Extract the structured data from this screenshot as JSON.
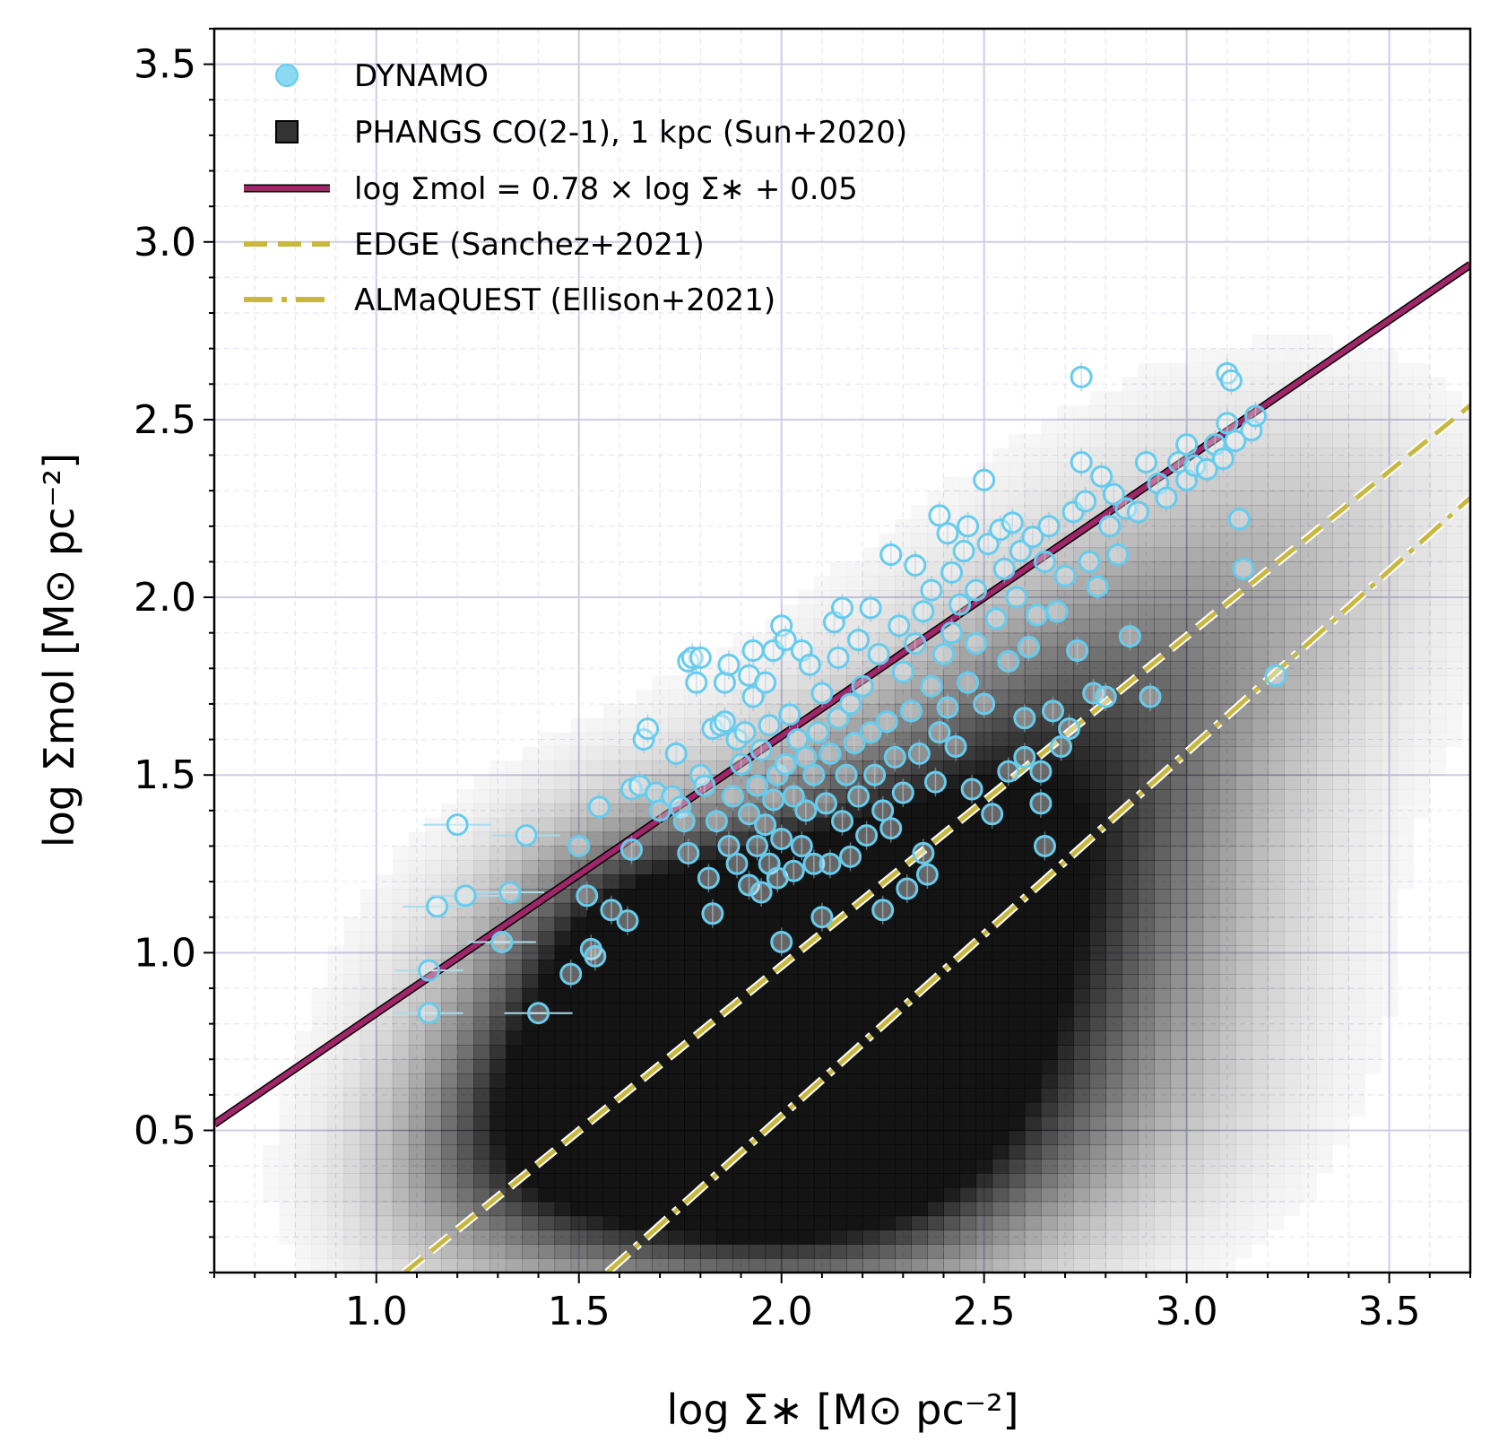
{
  "chart_data": {
    "type": "scatter",
    "title": "",
    "xlabel": "log Σ∗ [M⊙ pc⁻²]",
    "ylabel": "log Σmol [M⊙ pc⁻²]",
    "xlim": [
      0.6,
      3.7
    ],
    "ylim": [
      0.1,
      3.6
    ],
    "x_ticks": [
      "1.0",
      "1.5",
      "2.0",
      "2.5",
      "3.0",
      "3.5"
    ],
    "y_ticks": [
      "0.5",
      "1.0",
      "1.5",
      "2.0",
      "2.5",
      "3.0",
      "3.5"
    ],
    "grid": true,
    "legend_position": "top-left",
    "legend": [
      {
        "label": "DYNAMO",
        "marker": "circle",
        "color": "#66ccee"
      },
      {
        "label": "PHANGS CO(2-1), 1 kpc (Sun+2020)",
        "marker": "square",
        "color": "#333333"
      },
      {
        "label": "log Σmol = 0.78 × log Σ∗ + 0.05",
        "marker": "solid-line",
        "color": "#a0266a"
      },
      {
        "label": "EDGE (Sanchez+2021)",
        "marker": "dashed-line",
        "color": "#c9b840"
      },
      {
        "label": "ALMaQUEST (Ellison+2021)",
        "marker": "dashdot-line",
        "color": "#c9b840"
      }
    ],
    "lines": [
      {
        "name": "log Σmol = 0.78 × log Σ∗ + 0.05",
        "style": "solid",
        "color": "#a0266a",
        "slope": 0.78,
        "intercept": 0.05
      },
      {
        "name": "EDGE (Sanchez+2021)",
        "style": "dashed",
        "color": "#c9b840",
        "points": [
          [
            1.07,
            0.1
          ],
          [
            3.7,
            2.54
          ]
        ]
      },
      {
        "name": "ALMaQUEST (Ellison+2021)",
        "style": "dashdot",
        "color": "#c9b840",
        "points": [
          [
            1.57,
            0.1
          ],
          [
            3.7,
            2.28
          ]
        ]
      }
    ],
    "phangs_density_blobs": [
      [
        1.85,
        0.85,
        0.35,
        0.28,
        0.85
      ],
      [
        2.0,
        0.6,
        0.4,
        0.3,
        0.7
      ],
      [
        1.7,
        0.55,
        0.3,
        0.25,
        0.6
      ],
      [
        2.15,
        1.0,
        0.35,
        0.3,
        0.6
      ],
      [
        2.05,
        0.35,
        0.35,
        0.22,
        0.55
      ],
      [
        2.4,
        1.2,
        0.35,
        0.3,
        0.45
      ],
      [
        2.6,
        1.45,
        0.3,
        0.3,
        0.35
      ],
      [
        2.8,
        1.7,
        0.3,
        0.3,
        0.25
      ],
      [
        3.0,
        1.9,
        0.3,
        0.3,
        0.15
      ],
      [
        3.2,
        2.0,
        0.3,
        0.3,
        0.1
      ],
      [
        3.3,
        2.3,
        0.3,
        0.25,
        0.08
      ],
      [
        2.4,
        0.6,
        0.4,
        0.3,
        0.3
      ],
      [
        1.45,
        0.5,
        0.25,
        0.25,
        0.35
      ],
      [
        1.25,
        0.3,
        0.25,
        0.2,
        0.2
      ],
      [
        2.7,
        0.8,
        0.35,
        0.3,
        0.15
      ],
      [
        2.9,
        1.2,
        0.3,
        0.3,
        0.12
      ],
      [
        1.6,
        1.05,
        0.2,
        0.2,
        0.3
      ]
    ],
    "dynamo_points": [
      [
        1.2,
        1.36
      ],
      [
        1.15,
        1.13
      ],
      [
        1.22,
        1.16
      ],
      [
        1.13,
        0.95
      ],
      [
        1.13,
        0.83
      ],
      [
        1.31,
        1.03
      ],
      [
        1.33,
        1.17
      ],
      [
        1.37,
        1.33
      ],
      [
        1.4,
        0.83
      ],
      [
        1.48,
        0.94
      ],
      [
        1.5,
        1.3
      ],
      [
        1.52,
        1.16
      ],
      [
        1.53,
        1.01
      ],
      [
        1.54,
        0.99
      ],
      [
        1.55,
        1.41
      ],
      [
        1.58,
        1.12
      ],
      [
        1.62,
        1.09
      ],
      [
        1.63,
        1.29
      ],
      [
        1.63,
        1.46
      ],
      [
        1.65,
        1.47
      ],
      [
        1.66,
        1.6
      ],
      [
        1.67,
        1.63
      ],
      [
        1.69,
        1.45
      ],
      [
        1.7,
        1.4
      ],
      [
        1.73,
        1.44
      ],
      [
        1.74,
        1.56
      ],
      [
        1.75,
        1.41
      ],
      [
        1.76,
        1.37
      ],
      [
        1.77,
        1.28
      ],
      [
        1.77,
        1.82
      ],
      [
        1.78,
        1.83
      ],
      [
        1.79,
        1.76
      ],
      [
        1.8,
        1.83
      ],
      [
        1.8,
        1.5
      ],
      [
        1.81,
        1.47
      ],
      [
        1.82,
        1.21
      ],
      [
        1.83,
        1.11
      ],
      [
        1.83,
        1.63
      ],
      [
        1.84,
        1.37
      ],
      [
        1.85,
        1.64
      ],
      [
        1.86,
        1.65
      ],
      [
        1.86,
        1.76
      ],
      [
        1.87,
        1.81
      ],
      [
        1.87,
        1.3
      ],
      [
        1.88,
        1.44
      ],
      [
        1.89,
        1.25
      ],
      [
        1.89,
        1.6
      ],
      [
        1.9,
        1.53
      ],
      [
        1.91,
        1.62
      ],
      [
        1.92,
        1.19
      ],
      [
        1.92,
        1.39
      ],
      [
        1.92,
        1.78
      ],
      [
        1.93,
        1.85
      ],
      [
        1.93,
        1.72
      ],
      [
        1.94,
        1.3
      ],
      [
        1.94,
        1.47
      ],
      [
        1.95,
        1.17
      ],
      [
        1.95,
        1.57
      ],
      [
        1.96,
        1.76
      ],
      [
        1.96,
        1.36
      ],
      [
        1.97,
        1.25
      ],
      [
        1.97,
        1.64
      ],
      [
        1.98,
        1.43
      ],
      [
        1.98,
        1.85
      ],
      [
        1.99,
        1.5
      ],
      [
        1.99,
        1.21
      ],
      [
        2.0,
        1.92
      ],
      [
        2.0,
        1.32
      ],
      [
        2.0,
        1.03
      ],
      [
        2.01,
        1.88
      ],
      [
        2.01,
        1.53
      ],
      [
        2.02,
        1.67
      ],
      [
        2.03,
        1.23
      ],
      [
        2.03,
        1.44
      ],
      [
        2.04,
        1.6
      ],
      [
        2.05,
        1.85
      ],
      [
        2.05,
        1.3
      ],
      [
        2.06,
        1.4
      ],
      [
        2.06,
        1.55
      ],
      [
        2.07,
        1.81
      ],
      [
        2.08,
        1.5
      ],
      [
        2.08,
        1.25
      ],
      [
        2.09,
        1.62
      ],
      [
        2.1,
        1.1
      ],
      [
        2.1,
        1.73
      ],
      [
        2.11,
        1.42
      ],
      [
        2.12,
        1.25
      ],
      [
        2.12,
        1.56
      ],
      [
        2.13,
        1.93
      ],
      [
        2.14,
        1.66
      ],
      [
        2.14,
        1.83
      ],
      [
        2.15,
        1.37
      ],
      [
        2.15,
        1.97
      ],
      [
        2.16,
        1.5
      ],
      [
        2.17,
        1.27
      ],
      [
        2.17,
        1.7
      ],
      [
        2.18,
        1.59
      ],
      [
        2.19,
        1.44
      ],
      [
        2.19,
        1.88
      ],
      [
        2.2,
        1.75
      ],
      [
        2.21,
        1.33
      ],
      [
        2.22,
        1.62
      ],
      [
        2.22,
        1.97
      ],
      [
        2.23,
        1.5
      ],
      [
        2.24,
        1.84
      ],
      [
        2.25,
        1.4
      ],
      [
        2.25,
        1.12
      ],
      [
        2.26,
        1.65
      ],
      [
        2.27,
        1.35
      ],
      [
        2.27,
        2.12
      ],
      [
        2.28,
        1.55
      ],
      [
        2.29,
        1.92
      ],
      [
        2.3,
        1.79
      ],
      [
        2.3,
        1.45
      ],
      [
        2.31,
        1.18
      ],
      [
        2.32,
        1.68
      ],
      [
        2.33,
        1.87
      ],
      [
        2.33,
        2.09
      ],
      [
        2.34,
        1.56
      ],
      [
        2.35,
        1.28
      ],
      [
        2.35,
        1.96
      ],
      [
        2.36,
        1.22
      ],
      [
        2.37,
        1.75
      ],
      [
        2.37,
        2.02
      ],
      [
        2.38,
        1.48
      ],
      [
        2.39,
        1.62
      ],
      [
        2.39,
        2.23
      ],
      [
        2.4,
        1.84
      ],
      [
        2.41,
        1.69
      ],
      [
        2.41,
        2.18
      ],
      [
        2.42,
        1.9
      ],
      [
        2.42,
        2.07
      ],
      [
        2.43,
        1.58
      ],
      [
        2.44,
        1.98
      ],
      [
        2.45,
        2.13
      ],
      [
        2.46,
        1.76
      ],
      [
        2.46,
        2.2
      ],
      [
        2.47,
        1.46
      ],
      [
        2.48,
        1.87
      ],
      [
        2.48,
        2.02
      ],
      [
        2.5,
        1.7
      ],
      [
        2.5,
        2.33
      ],
      [
        2.51,
        2.15
      ],
      [
        2.52,
        1.39
      ],
      [
        2.53,
        1.94
      ],
      [
        2.54,
        2.19
      ],
      [
        2.55,
        2.08
      ],
      [
        2.56,
        1.51
      ],
      [
        2.56,
        1.82
      ],
      [
        2.57,
        2.21
      ],
      [
        2.58,
        2.0
      ],
      [
        2.59,
        2.13
      ],
      [
        2.6,
        1.66
      ],
      [
        2.6,
        1.55
      ],
      [
        2.61,
        1.86
      ],
      [
        2.62,
        2.17
      ],
      [
        2.63,
        1.95
      ],
      [
        2.64,
        1.51
      ],
      [
        2.64,
        1.42
      ],
      [
        2.65,
        2.1
      ],
      [
        2.65,
        1.3
      ],
      [
        2.66,
        2.2
      ],
      [
        2.67,
        1.68
      ],
      [
        2.68,
        1.96
      ],
      [
        2.69,
        1.58
      ],
      [
        2.7,
        2.06
      ],
      [
        2.71,
        1.63
      ],
      [
        2.72,
        2.24
      ],
      [
        2.73,
        1.85
      ],
      [
        2.74,
        2.62
      ],
      [
        2.74,
        2.38
      ],
      [
        2.75,
        2.27
      ],
      [
        2.76,
        2.1
      ],
      [
        2.77,
        1.73
      ],
      [
        2.78,
        2.03
      ],
      [
        2.79,
        2.34
      ],
      [
        2.8,
        1.72
      ],
      [
        2.81,
        2.2
      ],
      [
        2.82,
        2.29
      ],
      [
        2.83,
        2.12
      ],
      [
        2.85,
        2.25
      ],
      [
        2.86,
        1.89
      ],
      [
        2.88,
        2.24
      ],
      [
        2.9,
        2.38
      ],
      [
        2.91,
        1.72
      ],
      [
        2.93,
        2.32
      ],
      [
        2.95,
        2.28
      ],
      [
        2.98,
        2.38
      ],
      [
        3.0,
        2.33
      ],
      [
        3.0,
        2.43
      ],
      [
        3.02,
        2.37
      ],
      [
        3.05,
        2.36
      ],
      [
        3.07,
        2.43
      ],
      [
        3.09,
        2.39
      ],
      [
        3.1,
        2.49
      ],
      [
        3.1,
        2.63
      ],
      [
        3.11,
        2.61
      ],
      [
        3.12,
        2.44
      ],
      [
        3.13,
        2.22
      ],
      [
        3.14,
        2.08
      ],
      [
        3.16,
        2.47
      ],
      [
        3.17,
        2.51
      ],
      [
        3.22,
        1.78
      ]
    ]
  }
}
